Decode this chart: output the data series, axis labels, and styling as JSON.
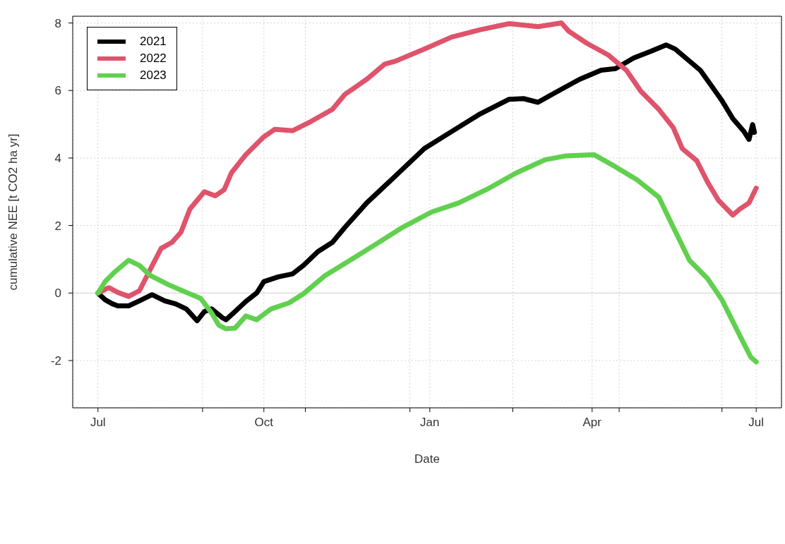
{
  "chart_data": {
    "type": "line",
    "xlabel": "Date",
    "ylabel": "cumulative NEE [t CO2 ha yr]",
    "xlim": [
      "2021-06-17",
      "2022-07-15"
    ],
    "xticks": [
      {
        "value": "2021-07-01",
        "label": "Jul"
      },
      {
        "value": "2021-08-28",
        "label": null
      },
      {
        "value": "2021-10-01",
        "label": "Oct"
      },
      {
        "value": "2021-10-24",
        "label": null
      },
      {
        "value": "2021-12-21",
        "label": null
      },
      {
        "value": "2022-01-01",
        "label": "Jan"
      },
      {
        "value": "2022-02-16",
        "label": null
      },
      {
        "value": "2022-04-01",
        "label": "Apr"
      },
      {
        "value": "2022-04-16",
        "label": null
      },
      {
        "value": "2022-06-12",
        "label": null
      },
      {
        "value": "2022-07-01",
        "label": "Jul"
      }
    ],
    "ylim": [
      -3.4,
      8.2
    ],
    "yticks": [
      -2,
      0,
      2,
      4,
      6,
      8
    ],
    "grid": true,
    "legend": "top left",
    "line_style": "solid",
    "marker": "none",
    "ref_lines": [
      {
        "axis": "y",
        "value": 0,
        "color": "#d3d3d3"
      }
    ],
    "series": [
      {
        "name": "2021",
        "color": "#000000",
        "x": [
          "2021-07-01",
          "2021-07-05",
          "2021-07-09",
          "2021-07-12",
          "2021-07-18",
          "2021-07-24",
          "2021-07-31",
          "2021-08-07",
          "2021-08-13",
          "2021-08-19",
          "2021-08-25",
          "2021-08-29",
          "2021-09-02",
          "2021-09-08",
          "2021-09-10",
          "2021-09-15",
          "2021-09-21",
          "2021-09-27",
          "2021-10-01",
          "2021-10-09",
          "2021-10-17",
          "2021-10-23",
          "2021-10-31",
          "2021-11-08",
          "2021-11-15",
          "2021-11-27",
          "2021-12-13",
          "2021-12-29",
          "2022-01-13",
          "2022-01-29",
          "2022-02-14",
          "2022-02-22",
          "2022-03-02",
          "2022-03-13",
          "2022-03-25",
          "2022-04-06",
          "2022-04-14",
          "2022-04-24",
          "2022-05-04",
          "2022-05-12",
          "2022-05-17",
          "2022-05-25",
          "2022-05-31",
          "2022-06-06",
          "2022-06-12",
          "2022-06-18",
          "2022-06-24",
          "2022-06-27",
          "2022-06-29",
          "2022-06-30"
        ],
        "values": [
          0,
          -0.2,
          -0.32,
          -0.38,
          -0.38,
          -0.23,
          -0.05,
          -0.23,
          -0.32,
          -0.47,
          -0.82,
          -0.55,
          -0.47,
          -0.73,
          -0.79,
          -0.55,
          -0.25,
          0,
          0.34,
          0.48,
          0.57,
          0.82,
          1.23,
          1.5,
          1.95,
          2.67,
          3.47,
          4.28,
          4.78,
          5.31,
          5.74,
          5.76,
          5.65,
          5.98,
          6.33,
          6.6,
          6.65,
          6.96,
          7.17,
          7.35,
          7.23,
          6.87,
          6.6,
          6.15,
          5.7,
          5.17,
          4.8,
          4.55,
          4.99,
          4.76
        ]
      },
      {
        "name": "2022",
        "color": "#df536b",
        "x": [
          "2021-07-01",
          "2021-07-07",
          "2021-07-12",
          "2021-07-18",
          "2021-07-24",
          "2021-07-30",
          "2021-08-05",
          "2021-08-11",
          "2021-08-16",
          "2021-08-21",
          "2021-08-29",
          "2021-09-04",
          "2021-09-09",
          "2021-09-13",
          "2021-09-21",
          "2021-10-01",
          "2021-10-07",
          "2021-10-17",
          "2021-10-27",
          "2021-11-08",
          "2021-11-15",
          "2021-11-27",
          "2021-12-07",
          "2021-12-13",
          "2021-12-29",
          "2022-01-13",
          "2022-01-29",
          "2022-02-14",
          "2022-03-02",
          "2022-03-15",
          "2022-03-19",
          "2022-03-29",
          "2022-04-10",
          "2022-04-20",
          "2022-04-28",
          "2022-05-08",
          "2022-05-16",
          "2022-05-21",
          "2022-05-29",
          "2022-06-04",
          "2022-06-10",
          "2022-06-18",
          "2022-06-22",
          "2022-06-27",
          "2022-07-01"
        ],
        "values": [
          0,
          0.16,
          0.02,
          -0.1,
          0.07,
          0.7,
          1.32,
          1.5,
          1.8,
          2.49,
          3,
          2.88,
          3.06,
          3.56,
          4.1,
          4.63,
          4.85,
          4.81,
          5.08,
          5.44,
          5.89,
          6.33,
          6.78,
          6.87,
          7.23,
          7.58,
          7.8,
          7.98,
          7.89,
          8,
          7.76,
          7.4,
          7.05,
          6.6,
          5.98,
          5.44,
          4.9,
          4.28,
          3.92,
          3.29,
          2.75,
          2.31,
          2.49,
          2.67,
          3.11
        ]
      },
      {
        "name": "2023",
        "color": "#61d04f",
        "x": [
          "2021-07-01",
          "2021-07-05",
          "2021-07-10",
          "2021-07-18",
          "2021-07-24",
          "2021-07-30",
          "2021-08-09",
          "2021-08-19",
          "2021-08-27",
          "2021-09-02",
          "2021-09-06",
          "2021-09-10",
          "2021-09-15",
          "2021-09-21",
          "2021-09-27",
          "2021-10-05",
          "2021-10-15",
          "2021-10-23",
          "2021-11-04",
          "2021-11-15",
          "2021-12-01",
          "2021-12-17",
          "2022-01-02",
          "2022-01-17",
          "2022-02-03",
          "2022-02-18",
          "2022-03-06",
          "2022-03-17",
          "2022-04-02",
          "2022-04-14",
          "2022-04-26",
          "2022-05-08",
          "2022-05-16",
          "2022-05-25",
          "2022-06-04",
          "2022-06-12",
          "2022-06-22",
          "2022-06-28",
          "2022-07-01"
        ],
        "values": [
          0,
          0.34,
          0.61,
          0.97,
          0.82,
          0.52,
          0.25,
          0.02,
          -0.16,
          -0.59,
          -0.95,
          -1.06,
          -1.04,
          -0.68,
          -0.79,
          -0.47,
          -0.29,
          -0.02,
          0.52,
          0.88,
          1.41,
          1.95,
          2.4,
          2.67,
          3.11,
          3.56,
          3.95,
          4.06,
          4.1,
          3.74,
          3.35,
          2.84,
          1.95,
          0.97,
          0.43,
          -0.2,
          -1.27,
          -1.9,
          -2.04
        ]
      }
    ]
  }
}
